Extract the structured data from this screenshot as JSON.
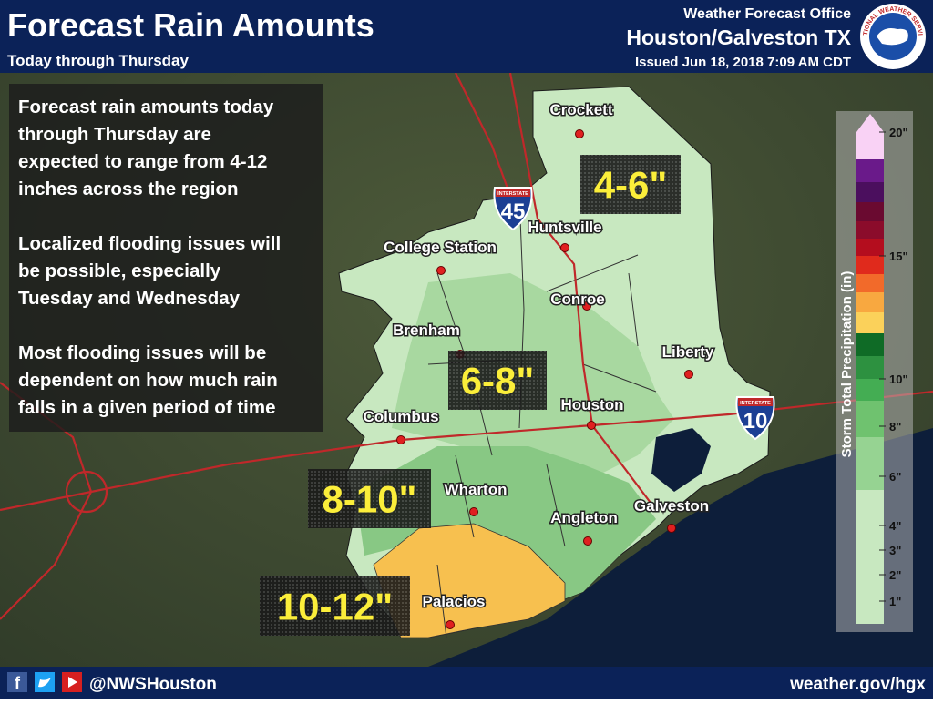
{
  "header": {
    "title": "Forecast Rain Amounts",
    "subtitle": "Today through Thursday",
    "office": {
      "line1": "Weather Forecast Office",
      "line2": "Houston/Galveston TX",
      "issued": "Issued Jun 18, 2018 7:09 AM CDT"
    },
    "logo_text": "NATIONAL WEATHER SERVICE"
  },
  "info": {
    "paragraphs": [
      [
        "Forecast rain amounts today",
        "through Thursday are",
        "expected to range from 4-12",
        "inches across the region"
      ],
      [
        "Localized flooding issues will",
        "be possible, especially",
        "Tuesday and Wednesday"
      ],
      [
        "Most flooding issues will be",
        "dependent on how much rain",
        "falls in a given period of time"
      ]
    ]
  },
  "cities": [
    "Crockett",
    "Huntsville",
    "College Station",
    "Conroe",
    "Brenham",
    "Liberty",
    "Houston",
    "Columbus",
    "Wharton",
    "Galveston",
    "Angleton",
    "Palacios"
  ],
  "amount_labels": [
    "4-6\"",
    "6-8\"",
    "8-10\"",
    "10-12\""
  ],
  "interstates": [
    {
      "label": "INTERSTATE",
      "number": "45"
    },
    {
      "label": "INTERSTATE",
      "number": "10"
    }
  ],
  "legend": {
    "title": "Storm Total Precipitation (in)",
    "labels": [
      "20\"",
      "15\"",
      "10\"",
      "8\"",
      "6\"",
      "4\"",
      "3\"",
      "2\"",
      "1\""
    ]
  },
  "footer": {
    "handle": "@NWSHouston",
    "website": "weather.gov/hgx"
  }
}
